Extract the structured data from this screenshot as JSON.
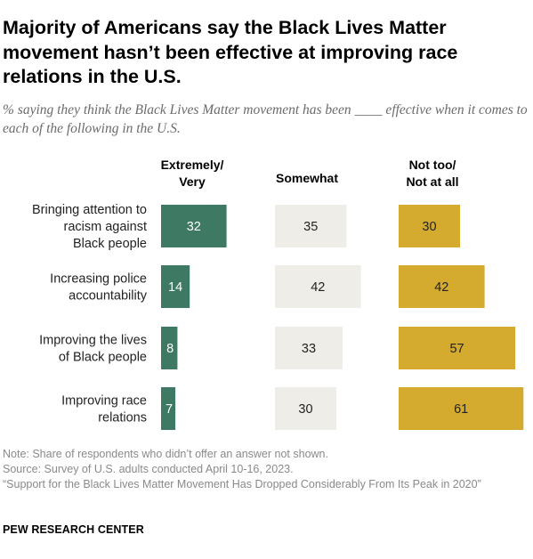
{
  "title": "Majority of Americans say the Black Lives Matter movement hasn’t been effective at improving race relations in the U.S.",
  "subtitle": "% saying they think the Black Lives Matter movement has been ____ effective when it comes to each of the following in the U.S.",
  "colors": {
    "extremely_very": "#3e7a63",
    "somewhat": "#efede7",
    "not_too": "#d4ab2e"
  },
  "chart_data": {
    "type": "bar",
    "orientation": "horizontal",
    "stacked": false,
    "column_headers": [
      "Extremely/\nVery",
      "Somewhat",
      "Not too/\nNot at all"
    ],
    "categories": [
      "Bringing attention to racism against Black people",
      "Increasing police accountability",
      "Improving the lives of Black people",
      "Improving race relations"
    ],
    "category_lines": [
      [
        "Bringing attention to",
        "racism against",
        "Black people"
      ],
      [
        "Increasing police",
        "accountability"
      ],
      [
        "Improving the lives",
        "of Black people"
      ],
      [
        "Improving race",
        "relations"
      ]
    ],
    "series": [
      {
        "name": "Extremely/Very",
        "values": [
          32,
          14,
          8,
          7
        ]
      },
      {
        "name": "Somewhat",
        "values": [
          35,
          42,
          33,
          30
        ]
      },
      {
        "name": "Not too/Not at all",
        "values": [
          30,
          42,
          57,
          61
        ]
      }
    ],
    "data_labels": true,
    "grid": false,
    "legend": "column headers"
  },
  "notes": [
    "Note: Share of respondents who didn’t offer an answer not shown.",
    "Source: Survey of U.S. adults conducted April 10-16, 2023.",
    "“Support for the Black Lives Matter Movement Has Dropped Considerably From Its Peak in 2020”"
  ],
  "brand": "PEW RESEARCH CENTER"
}
